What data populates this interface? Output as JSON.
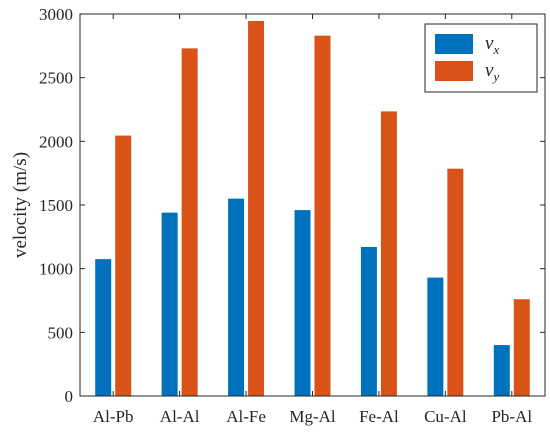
{
  "chart_data": {
    "type": "bar",
    "categories": [
      "Al-Pb",
      "Al-Al",
      "Al-Fe",
      "Mg-Al",
      "Fe-Al",
      "Cu-Al",
      "Pb-Al"
    ],
    "series": [
      {
        "name": "v_x",
        "label_main": "v",
        "label_sub": "x",
        "color": "#0072BD",
        "values": [
          1075,
          1440,
          1550,
          1460,
          1170,
          930,
          400
        ]
      },
      {
        "name": "v_y",
        "label_main": "v",
        "label_sub": "y",
        "color": "#D95319",
        "values": [
          2045,
          2730,
          2945,
          2830,
          2235,
          1785,
          760
        ]
      }
    ],
    "ylabel": "velocity (m/s)",
    "xlabel": "",
    "ylim": [
      0,
      3000
    ],
    "yticks": [
      0,
      500,
      1000,
      1500,
      2000,
      2500,
      3000
    ],
    "grid": false,
    "legend_position": "top-right"
  }
}
